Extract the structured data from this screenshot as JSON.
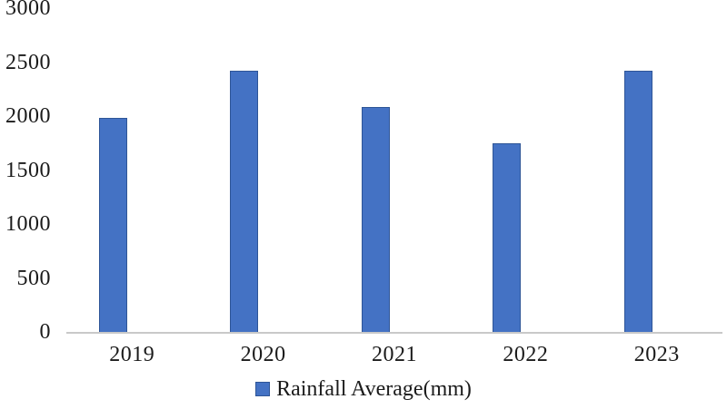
{
  "chart_data": {
    "type": "bar",
    "title": "",
    "xlabel": "",
    "ylabel": "",
    "categories": [
      "2019",
      "2020",
      "2021",
      "2022",
      "2023"
    ],
    "series": [
      {
        "name": "Rainfall Average(mm)",
        "values": [
          1980,
          2420,
          2080,
          1750,
          2420
        ]
      }
    ],
    "ylim": [
      0,
      3000
    ],
    "ytick_step": 500,
    "yticks": [
      "0",
      "500",
      "1000",
      "1500",
      "2000",
      "2500",
      "3000"
    ],
    "grid": false,
    "legend_position": "bottom",
    "colors": {
      "bar_fill": "#4472C4",
      "bar_border": "#2E5597",
      "axis_line": "#C9C9C9",
      "text": "#1B1B1B"
    }
  },
  "legend": {
    "label": "Rainfall Average(mm)"
  }
}
